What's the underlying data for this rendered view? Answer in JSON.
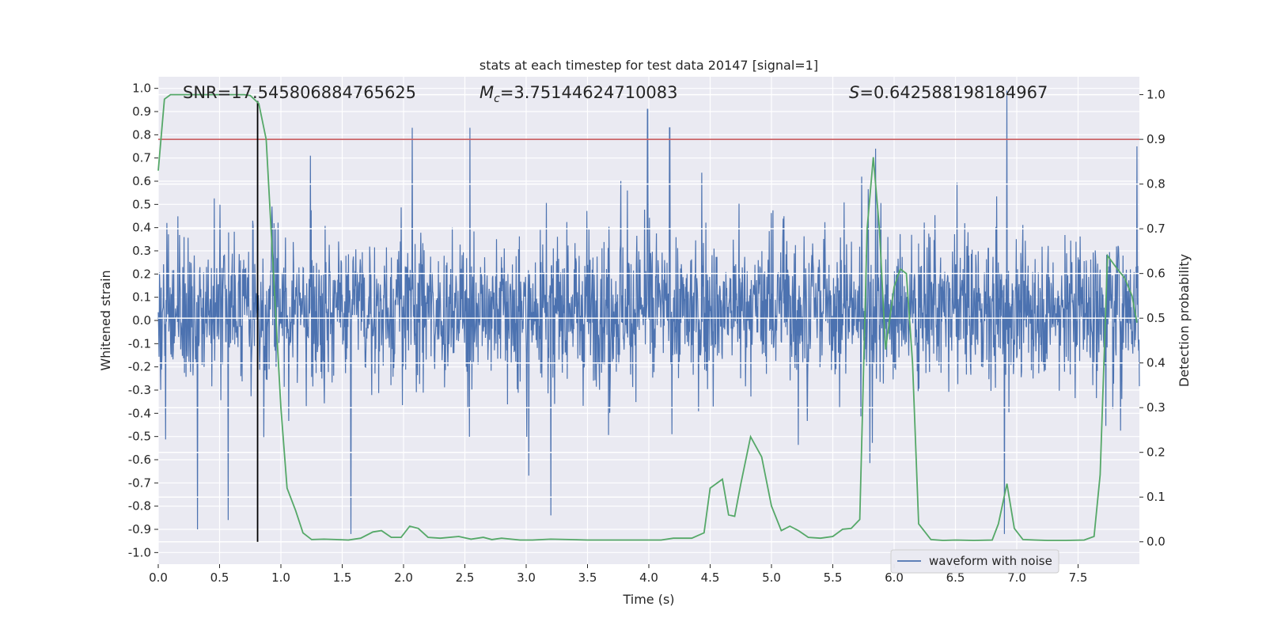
{
  "chart_data": {
    "type": "line",
    "title": "stats at each timestep for test data 20147 [signal=1]",
    "xlabel": "Time (s)",
    "ylabel": "Whitened strain",
    "ylabel_right": "Detection probability",
    "xlim": [
      0.0,
      8.0
    ],
    "ylim": [
      -1.05,
      1.05
    ],
    "ylim_right": [
      -0.05,
      1.04
    ],
    "xticks": [
      "0.0",
      "0.5",
      "1.0",
      "1.5",
      "2.0",
      "2.5",
      "3.0",
      "3.5",
      "4.0",
      "4.5",
      "5.0",
      "5.5",
      "6.0",
      "6.5",
      "7.0",
      "7.5"
    ],
    "yticks": [
      "-1.0",
      "-0.9",
      "-0.8",
      "-0.7",
      "-0.6",
      "-0.5",
      "-0.4",
      "-0.3",
      "-0.2",
      "-0.1",
      "0.0",
      "0.1",
      "0.2",
      "0.3",
      "0.4",
      "0.5",
      "0.6",
      "0.7",
      "0.8",
      "0.9",
      "1.0"
    ],
    "yticks_right": [
      "0.0",
      "0.1",
      "0.2",
      "0.3",
      "0.4",
      "0.5",
      "0.6",
      "0.7",
      "0.8",
      "0.9",
      "1.0"
    ],
    "annotations": {
      "snr": "SNR=17.545806884765625",
      "mc_symbol": "M",
      "mc_sub": "c",
      "mc_value": "=3.75144624710083",
      "s_symbol": "S",
      "s_value": "=0.642588198184967"
    },
    "legend": {
      "label": "waveform with noise",
      "location": "lower-right"
    },
    "threshold_right": 0.9,
    "marker_time": 0.81,
    "series": [
      {
        "name": "waveform with noise",
        "axis": "left",
        "color": "#4c72b0",
        "description": "dense noise trace sampled across 0-8 s, core band about -0.3 to 0.4",
        "notable_peaks": [
          {
            "x": 0.07,
            "y": 0.42
          },
          {
            "x": 0.32,
            "y": -0.9
          },
          {
            "x": 0.57,
            "y": -0.86
          },
          {
            "x": 1.24,
            "y": 0.71
          },
          {
            "x": 1.57,
            "y": -0.92
          },
          {
            "x": 2.07,
            "y": 0.83
          },
          {
            "x": 2.54,
            "y": 0.83
          },
          {
            "x": 3.2,
            "y": -0.84
          },
          {
            "x": 3.99,
            "y": 0.91
          },
          {
            "x": 4.17,
            "y": 0.83
          },
          {
            "x": 5.85,
            "y": 0.74
          },
          {
            "x": 6.92,
            "y": 0.99
          },
          {
            "x": 6.9,
            "y": -0.92
          },
          {
            "x": 7.98,
            "y": 0.75
          }
        ]
      },
      {
        "name": "detection probability",
        "axis": "right",
        "color": "#55a868",
        "x": [
          0.0,
          0.05,
          0.1,
          0.2,
          0.4,
          0.6,
          0.7,
          0.75,
          0.82,
          0.88,
          0.93,
          1.0,
          1.05,
          1.12,
          1.18,
          1.25,
          1.35,
          1.45,
          1.55,
          1.65,
          1.75,
          1.82,
          1.9,
          1.98,
          2.05,
          2.12,
          2.2,
          2.3,
          2.45,
          2.55,
          2.65,
          2.72,
          2.8,
          2.95,
          3.05,
          3.2,
          3.35,
          3.5,
          3.7,
          3.9,
          4.1,
          4.2,
          4.35,
          4.45,
          4.5,
          4.6,
          4.65,
          4.7,
          4.75,
          4.83,
          4.92,
          5.0,
          5.08,
          5.15,
          5.22,
          5.3,
          5.4,
          5.5,
          5.58,
          5.65,
          5.72,
          5.78,
          5.83,
          5.88,
          5.93,
          6.0,
          6.05,
          6.1,
          6.15,
          6.2,
          6.3,
          6.4,
          6.5,
          6.65,
          6.8,
          6.85,
          6.92,
          6.98,
          7.05,
          7.15,
          7.25,
          7.4,
          7.55,
          7.63,
          7.68,
          7.74,
          7.82,
          7.88,
          7.94,
          7.98
        ],
        "y": [
          0.83,
          0.99,
          1.0,
          1.0,
          1.0,
          1.0,
          1.0,
          0.998,
          0.98,
          0.9,
          0.65,
          0.3,
          0.12,
          0.07,
          0.02,
          0.005,
          0.006,
          0.005,
          0.004,
          0.008,
          0.022,
          0.025,
          0.01,
          0.01,
          0.035,
          0.03,
          0.01,
          0.008,
          0.012,
          0.006,
          0.01,
          0.005,
          0.008,
          0.004,
          0.004,
          0.006,
          0.005,
          0.004,
          0.004,
          0.004,
          0.004,
          0.008,
          0.008,
          0.02,
          0.12,
          0.14,
          0.06,
          0.057,
          0.13,
          0.235,
          0.19,
          0.08,
          0.025,
          0.035,
          0.025,
          0.01,
          0.008,
          0.012,
          0.028,
          0.03,
          0.05,
          0.7,
          0.86,
          0.7,
          0.43,
          0.57,
          0.61,
          0.6,
          0.4,
          0.04,
          0.005,
          0.003,
          0.004,
          0.003,
          0.004,
          0.04,
          0.13,
          0.03,
          0.005,
          0.004,
          0.003,
          0.003,
          0.004,
          0.012,
          0.15,
          0.64,
          0.61,
          0.59,
          0.55,
          0.49
        ]
      }
    ]
  }
}
